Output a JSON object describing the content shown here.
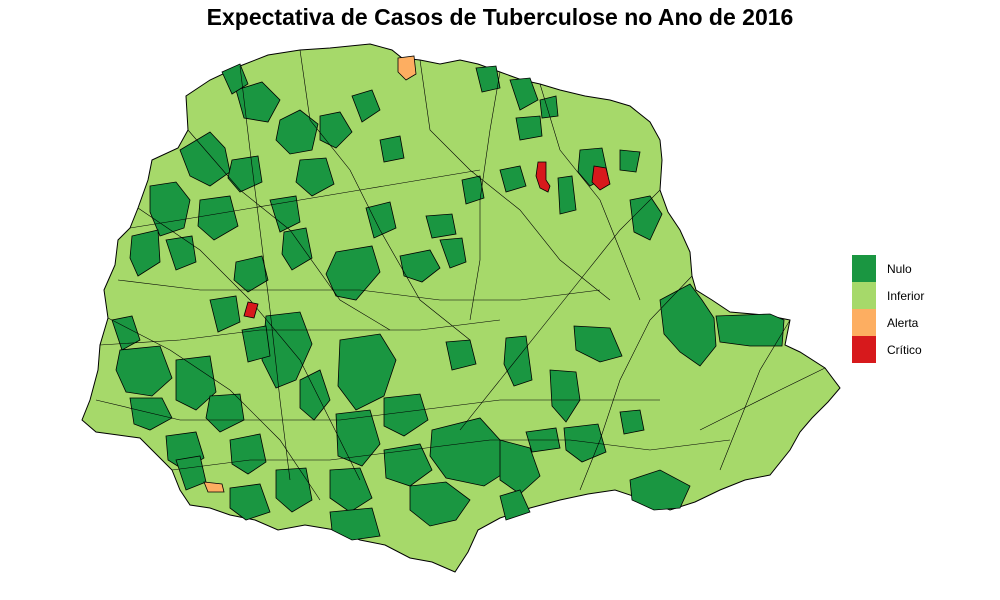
{
  "title": "Expectativa de Casos de Tuberculose no Ano de 2016",
  "legend": {
    "items": [
      {
        "label": "Nulo",
        "color": "#1a9641"
      },
      {
        "label": "Inferior",
        "color": "#a6d96a"
      },
      {
        "label": "Alerta",
        "color": "#fdae61"
      },
      {
        "label": "Crítico",
        "color": "#d7191c"
      }
    ]
  },
  "colors": {
    "nulo": "#1a9641",
    "inferior": "#a6d96a",
    "alerta": "#fdae61",
    "critico": "#d7191c",
    "border": "#000000",
    "background": "#ffffff"
  }
}
